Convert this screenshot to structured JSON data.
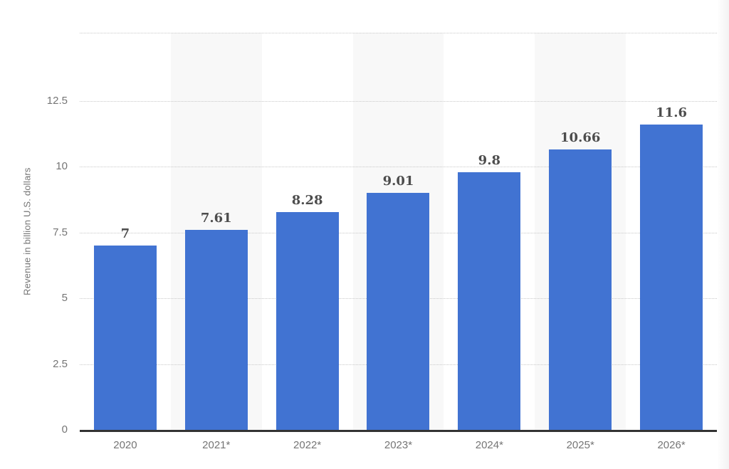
{
  "chart_data": {
    "type": "bar",
    "title": "",
    "xlabel": "",
    "ylabel": "Revenue in billion U.S. dollars",
    "categories": [
      "2020",
      "2021*",
      "2022*",
      "2023*",
      "2024*",
      "2025*",
      "2026*"
    ],
    "values": [
      7,
      7.61,
      8.28,
      9.01,
      9.8,
      10.66,
      11.6
    ],
    "value_labels": [
      "7",
      "7.61",
      "8.28",
      "9.01",
      "9.8",
      "10.66",
      "11.6"
    ],
    "yticks": [
      0,
      2.5,
      5,
      7.5,
      10,
      12.5
    ],
    "ylim": [
      0,
      15.1
    ],
    "grid": "horizontal-dotted",
    "legend": "none",
    "striped_columns": [
      1,
      3,
      5
    ],
    "colors": {
      "bar": "#4173d2",
      "stripe": "#f8f8f8",
      "gridline": "#c9c9c9",
      "axis_line": "#333333",
      "tick_label": "#757575",
      "value_label": "#4d4d4d",
      "background": "#ffffff"
    }
  }
}
